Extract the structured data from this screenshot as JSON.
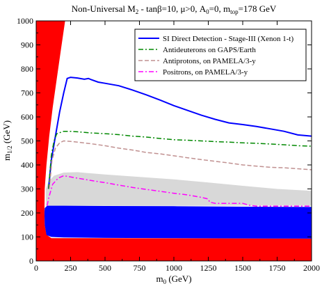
{
  "chart_data": {
    "type": "line",
    "title": "Non-Universal M₂ - tanβ=10, μ>0, A₀=0, m_top=178 GeV",
    "title_parts": {
      "t1": "Non-Universal M",
      "t1_sub": "2",
      "t2": " - tanβ=10, μ>0, A",
      "t2_sub": "0",
      "t3": "=0, m",
      "t3_sub": "top",
      "t4": "=178 GeV"
    },
    "xlabel": "m₀ (GeV)",
    "xlabel_parts": {
      "main": "m",
      "sub": "0",
      "unit": " (GeV)"
    },
    "ylabel": "m₁/₂ (GeV)",
    "ylabel_parts": {
      "main": "m",
      "sub": "1/2",
      "unit": " (GeV)"
    },
    "xlim": [
      0,
      2000
    ],
    "ylim": [
      0,
      1000
    ],
    "xticks": [
      0,
      250,
      500,
      750,
      1000,
      1250,
      1500,
      1750,
      2000
    ],
    "yticks": [
      0,
      100,
      200,
      300,
      400,
      500,
      600,
      700,
      800,
      900,
      1000
    ],
    "legend_position": "top-right",
    "colors": {
      "excluded_red": "#ff0000",
      "lep_blue": "#0000ff",
      "band_gray": "#d8d8d8"
    },
    "regions": [
      {
        "name": "excluded-red-left",
        "color": "#ff0000",
        "polygon": [
          [
            0,
            0
          ],
          [
            2000,
            0
          ],
          [
            2000,
            93
          ],
          [
            110,
            95
          ],
          [
            75,
            110
          ],
          [
            62,
            150
          ],
          [
            60,
            200
          ],
          [
            62,
            300
          ],
          [
            75,
            400
          ],
          [
            95,
            520
          ],
          [
            120,
            640
          ],
          [
            150,
            760
          ],
          [
            180,
            880
          ],
          [
            210,
            1000
          ],
          [
            0,
            1000
          ]
        ]
      },
      {
        "name": "gray-band",
        "color": "#d8d8d8",
        "polygon": [
          [
            70,
            230
          ],
          [
            70,
            300
          ],
          [
            90,
            330
          ],
          [
            130,
            355
          ],
          [
            200,
            368
          ],
          [
            300,
            370
          ],
          [
            500,
            360
          ],
          [
            750,
            350
          ],
          [
            1000,
            340
          ],
          [
            1250,
            327
          ],
          [
            1500,
            313
          ],
          [
            1750,
            300
          ],
          [
            2000,
            292
          ],
          [
            2000,
            230
          ]
        ]
      },
      {
        "name": "blue-band",
        "color": "#0000ff",
        "polygon": [
          [
            75,
            108
          ],
          [
            110,
            100
          ],
          [
            200,
            98
          ],
          [
            500,
            96
          ],
          [
            1000,
            95
          ],
          [
            1500,
            94
          ],
          [
            2000,
            93
          ],
          [
            2000,
            225
          ],
          [
            1500,
            226
          ],
          [
            1000,
            228
          ],
          [
            500,
            229
          ],
          [
            200,
            230
          ],
          [
            80,
            230
          ],
          [
            62,
            220
          ],
          [
            60,
            200
          ],
          [
            62,
            150
          ]
        ]
      }
    ],
    "series": [
      {
        "name": "SI Direct Detection - Stage-III (Xenon 1-t)",
        "color": "#0000ff",
        "dash": "",
        "width": 2,
        "x": [
          90,
          110,
          140,
          170,
          200,
          225,
          250,
          300,
          350,
          380,
          400,
          450,
          500,
          600,
          700,
          800,
          900,
          1000,
          1100,
          1200,
          1300,
          1400,
          1500,
          1600,
          1700,
          1800,
          1900,
          2000
        ],
        "y": [
          300,
          420,
          520,
          620,
          700,
          760,
          765,
          762,
          757,
          760,
          755,
          745,
          740,
          730,
          712,
          692,
          670,
          647,
          627,
          607,
          590,
          575,
          568,
          560,
          550,
          540,
          525,
          520
        ]
      },
      {
        "name": "Antideuterons on GAPS/Earth",
        "color": "#008800",
        "dash": "7,3,2,3",
        "width": 1.5,
        "x": [
          90,
          110,
          130,
          150,
          180,
          200,
          250,
          300,
          400,
          500,
          600,
          700,
          800,
          900,
          1000,
          1100,
          1200,
          1300,
          1400,
          1500,
          1600,
          1700,
          1800,
          1900,
          2000
        ],
        "y": [
          300,
          440,
          500,
          530,
          536,
          540,
          540,
          538,
          533,
          530,
          526,
          520,
          516,
          510,
          505,
          503,
          500,
          497,
          495,
          492,
          490,
          487,
          484,
          480,
          478
        ]
      },
      {
        "name": "Antiprotons, on PAMELA/3-y",
        "color": "#c09090",
        "dash": "6,3",
        "width": 1.5,
        "x": [
          95,
          115,
          140,
          170,
          200,
          250,
          300,
          400,
          500,
          600,
          700,
          800,
          900,
          1000,
          1100,
          1200,
          1300,
          1400,
          1500,
          1600,
          1700,
          1800,
          1900,
          2000
        ],
        "y": [
          300,
          420,
          470,
          492,
          500,
          498,
          495,
          488,
          480,
          470,
          462,
          452,
          446,
          438,
          430,
          422,
          415,
          408,
          400,
          395,
          390,
          388,
          384,
          380
        ]
      },
      {
        "name": "Positrons, on PAMELA/3-y",
        "color": "#ff00ff",
        "dash": "7,3,2,3",
        "width": 1.5,
        "x": [
          80,
          90,
          120,
          160,
          200,
          250,
          300,
          400,
          500,
          600,
          700,
          800,
          900,
          1000,
          1100,
          1200,
          1250,
          1260,
          1300,
          1400,
          1500,
          1550,
          1600,
          1700,
          1800,
          1900,
          2000
        ],
        "y": [
          230,
          260,
          320,
          345,
          355,
          350,
          345,
          335,
          326,
          316,
          306,
          298,
          290,
          282,
          275,
          265,
          258,
          245,
          240,
          240,
          240,
          232,
          228,
          228,
          228,
          228,
          228
        ]
      }
    ]
  }
}
